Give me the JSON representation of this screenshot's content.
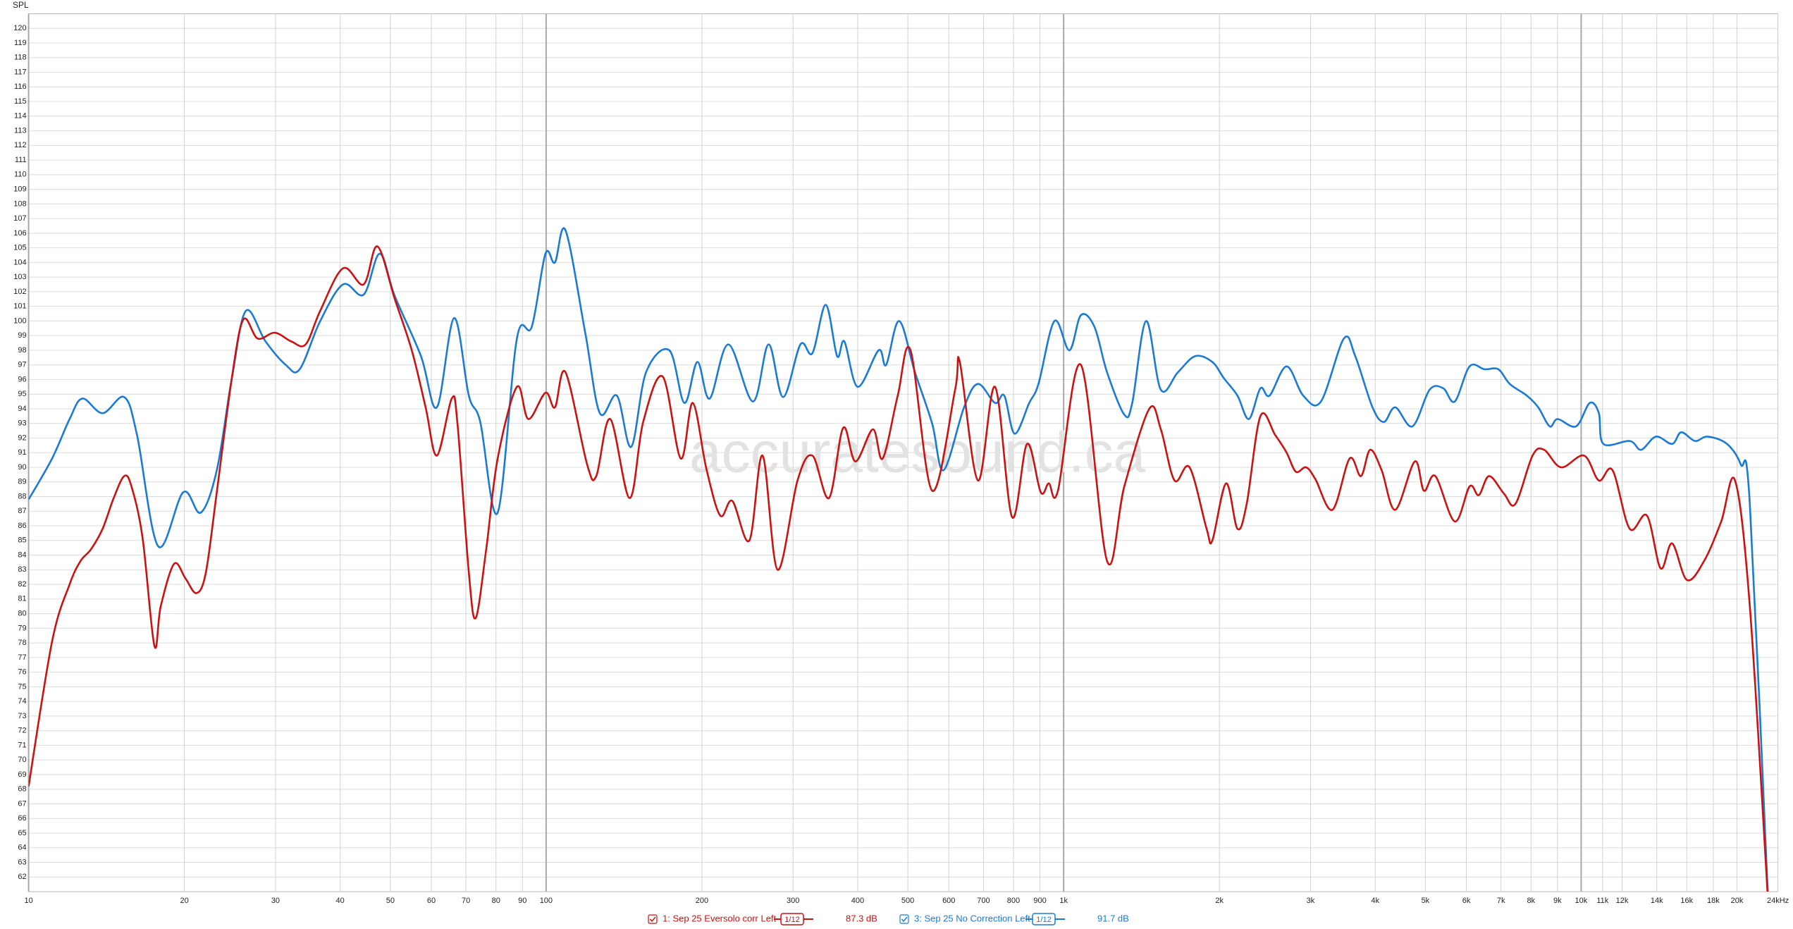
{
  "chart_data": {
    "type": "line",
    "y_label": "SPL",
    "watermark": "accuratesound.ca",
    "x_scale": "log",
    "grid": true,
    "xlim": [
      10,
      24000
    ],
    "ylim": [
      61,
      121
    ],
    "xticks": [
      10,
      20,
      30,
      40,
      50,
      60,
      70,
      80,
      90,
      100,
      200,
      300,
      400,
      500,
      600,
      700,
      800,
      900,
      {
        "value": 1000,
        "label": "1k"
      },
      {
        "value": 2000,
        "label": "2k"
      },
      {
        "value": 3000,
        "label": "3k"
      },
      {
        "value": 4000,
        "label": "4k"
      },
      {
        "value": 5000,
        "label": "5k"
      },
      {
        "value": 6000,
        "label": "6k"
      },
      {
        "value": 7000,
        "label": "7k"
      },
      {
        "value": 8000,
        "label": "8k"
      },
      {
        "value": 9000,
        "label": "9k"
      },
      {
        "value": 10000,
        "label": "10k"
      },
      {
        "value": 11000,
        "label": "11k"
      },
      {
        "value": 12000,
        "label": "12k"
      },
      {
        "value": 14000,
        "label": "14k"
      },
      {
        "value": 16000,
        "label": "16k"
      },
      {
        "value": 18000,
        "label": "18k"
      },
      {
        "value": 20000,
        "label": "20k"
      },
      {
        "value": 24000,
        "label": "24kHz"
      }
    ],
    "yticks": [
      62,
      63,
      64,
      65,
      66,
      67,
      68,
      69,
      70,
      71,
      72,
      73,
      74,
      75,
      76,
      77,
      78,
      79,
      80,
      81,
      82,
      83,
      84,
      85,
      86,
      87,
      88,
      89,
      90,
      91,
      92,
      93,
      94,
      95,
      96,
      97,
      98,
      99,
      100,
      101,
      102,
      103,
      104,
      105,
      106,
      107,
      108,
      109,
      110,
      111,
      112,
      113,
      114,
      115,
      116,
      117,
      118,
      119,
      120
    ],
    "series": [
      {
        "name": "1: Sep 25 Eversolo corr Left",
        "color": "#cc1111",
        "smoothing": "1/12",
        "level": "87.3 dB",
        "x": [
          10,
          11.1,
          12,
          12.6,
          13.2,
          13.9,
          14.6,
          15.3,
          15.8,
          16.6,
          17.5,
          18,
          19.1,
          20.1,
          21.1,
          22,
          23.1,
          24.7,
          26,
          27.7,
          29.9,
          32.2,
          34.3,
          36.6,
          40.5,
          44.4,
          47.2,
          51,
          55,
          58.5,
          61.5,
          65.7,
          67.4,
          70.9,
          73.1,
          76.6,
          80.6,
          87.8,
          92.4,
          99.7,
          104,
          109,
          120,
          125,
          133,
          145,
          154,
          168,
          182,
          192,
          204,
          217,
          229,
          247,
          262,
          280,
          306,
          327,
          352,
          375,
          396,
          428,
          447,
          478,
          506,
          557,
          617,
          630,
          683,
          737,
          795,
          850,
          903,
          936,
          975,
          1080,
          1213,
          1310,
          1464,
          1541,
          1638,
          1751,
          1889,
          1938,
          2060,
          2167,
          2258,
          2400,
          2564,
          2697,
          2810,
          2941,
          3064,
          3307,
          3569,
          3754,
          3911,
          4116,
          4374,
          4770,
          4968,
          5227,
          5699,
          6088,
          6342,
          6639,
          7094,
          7464,
          8055,
          8476,
          9148,
          10130,
          10820,
          11500,
          12410,
          13400,
          14240,
          14990,
          16010,
          17280,
          18650,
          19830,
          21180,
          23000
        ],
        "values": [
          68.2,
          78.1,
          82.0,
          83.6,
          84.4,
          85.8,
          87.9,
          89.4,
          88.7,
          85.2,
          77.8,
          80.5,
          83.4,
          82.4,
          81.4,
          82.8,
          88.3,
          96.1,
          100.1,
          98.8,
          99.2,
          98.6,
          98.4,
          100.7,
          103.6,
          102.5,
          105.1,
          101.5,
          98.0,
          94.1,
          90.8,
          94.7,
          93.0,
          82.8,
          79.7,
          84.4,
          90.6,
          95.5,
          93.3,
          95.1,
          94.1,
          96.5,
          90.2,
          89.4,
          93.3,
          87.9,
          93.1,
          96.2,
          90.6,
          94.4,
          89.9,
          86.7,
          87.7,
          85.0,
          90.8,
          83.0,
          89.1,
          90.8,
          87.9,
          92.7,
          90.4,
          92.6,
          90.6,
          94.9,
          98.0,
          88.4,
          95.3,
          97.2,
          89.1,
          95.5,
          86.6,
          91.6,
          88.3,
          88.9,
          88.4,
          97.0,
          83.6,
          88.7,
          94.0,
          92.6,
          89.1,
          90.0,
          85.8,
          85.0,
          88.9,
          85.8,
          87.5,
          93.5,
          92.2,
          91.0,
          89.7,
          90.0,
          89.2,
          87.1,
          90.6,
          89.4,
          91.2,
          89.8,
          87.1,
          90.4,
          88.4,
          89.4,
          86.3,
          88.7,
          88.1,
          89.4,
          88.2,
          87.5,
          90.8,
          91.2,
          90.0,
          90.8,
          89.1,
          89.8,
          85.8,
          86.7,
          83.1,
          84.8,
          82.3,
          83.6,
          86.3,
          89.1,
          80.5,
          60
        ]
      },
      {
        "name": "3: Sep 25 No Correction Left",
        "color": "#1a7ad6",
        "smoothing": "1/12",
        "level": "91.7 dB",
        "x": [
          10,
          11.1,
          12,
          12.7,
          13.9,
          15.3,
          16.2,
          17.8,
          19.9,
          21.5,
          23.1,
          24.7,
          26.3,
          28.7,
          31.4,
          33.4,
          36.6,
          40.5,
          44.4,
          47.7,
          51,
          57.3,
          61.5,
          66.4,
          70.9,
          74.6,
          80.6,
          87.8,
          93.8,
          99.7,
          104,
          109,
          119,
          127,
          137,
          146,
          156,
          173,
          185,
          196,
          207,
          225,
          251,
          269,
          287,
          310,
          327,
          347,
          365,
          377,
          400,
          439,
          454,
          481,
          516,
          557,
          586,
          642,
          683,
          737,
          768,
          804,
          858,
          894,
          960,
          1026,
          1080,
          1147,
          1213,
          1310,
          1357,
          1443,
          1541,
          1663,
          1796,
          1938,
          2039,
          2167,
          2280,
          2400,
          2500,
          2697,
          2904,
          3142,
          3479,
          3660,
          3952,
          4157,
          4374,
          4721,
          5095,
          5415,
          5699,
          6088,
          6507,
          6918,
          7278,
          7852,
          8262,
          8695,
          9010,
          9775,
          10390,
          10820,
          11040,
          12410,
          13060,
          13950,
          14990,
          15610,
          16590,
          17550,
          19130,
          20340,
          21180,
          23000
        ],
        "values": [
          87.8,
          90.6,
          93.3,
          94.7,
          93.7,
          94.8,
          92.2,
          84.6,
          88.3,
          86.9,
          89.8,
          96.1,
          100.7,
          98.6,
          97.0,
          96.7,
          100.0,
          102.5,
          101.8,
          104.6,
          101.7,
          97.6,
          94.1,
          100.2,
          94.9,
          93.1,
          86.9,
          98.8,
          99.6,
          104.6,
          104.0,
          106.2,
          99.2,
          93.7,
          94.9,
          91.4,
          96.5,
          98.0,
          94.4,
          97.2,
          94.7,
          98.4,
          94.5,
          98.4,
          94.8,
          98.4,
          97.8,
          101.1,
          97.6,
          98.6,
          95.5,
          98.0,
          97.0,
          100.0,
          96.5,
          93.0,
          89.8,
          94.1,
          95.7,
          94.4,
          94.9,
          92.3,
          94.4,
          95.7,
          100.0,
          98.0,
          100.4,
          99.6,
          96.5,
          93.6,
          94.4,
          100.0,
          95.3,
          96.5,
          97.6,
          97.2,
          96.1,
          94.9,
          93.3,
          95.4,
          94.9,
          96.9,
          94.9,
          94.5,
          98.8,
          97.6,
          94.1,
          93.1,
          94.1,
          92.8,
          95.3,
          95.4,
          94.5,
          96.9,
          96.7,
          96.7,
          95.7,
          94.9,
          94.1,
          92.8,
          93.3,
          92.8,
          94.4,
          93.7,
          91.6,
          91.8,
          91.2,
          92.1,
          91.6,
          92.4,
          91.8,
          92.1,
          91.6,
          90.2,
          87.5,
          60
        ]
      }
    ]
  }
}
